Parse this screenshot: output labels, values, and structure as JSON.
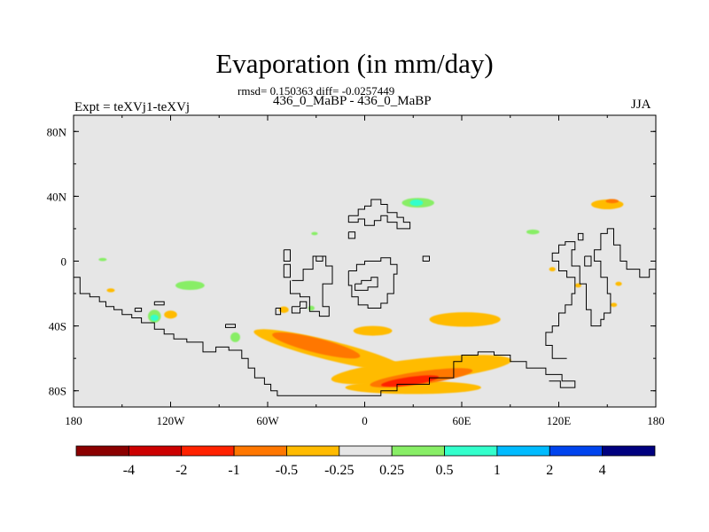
{
  "chart_data": {
    "type": "heatmap",
    "title": "Evaporation (in mm/day)",
    "stats_line": "rmsd= 0.150363 diff= -0.0257449",
    "subtitle": "436_0_MaBP - 436_0_MaBP",
    "experiment": "Expt = teXVj1-teXVj",
    "season": "JJA",
    "x_axis": {
      "range": [
        -180,
        180
      ],
      "ticks": [
        -180,
        -120,
        -60,
        0,
        60,
        120,
        180
      ],
      "tick_labels": [
        "180",
        "120W",
        "60W",
        "0",
        "60E",
        "120E",
        "180"
      ]
    },
    "y_axis": {
      "range": [
        -90,
        90
      ],
      "ticks": [
        80,
        40,
        0,
        -40,
        -80
      ],
      "tick_labels": [
        "80N",
        "40N",
        "0",
        "40S",
        "80S"
      ]
    },
    "colorbar": {
      "colors": [
        "#8b0000",
        "#cc0000",
        "#ff2200",
        "#ff7700",
        "#ffbb00",
        "#e6e6e6",
        "#88ee66",
        "#33ffcc",
        "#00bbff",
        "#0044ee",
        "#00007f"
      ],
      "boundary_labels": [
        "-4",
        "-2",
        "-1",
        "-0.5",
        "-0.25",
        "0.25",
        "0.5",
        "1",
        "2",
        "4"
      ]
    },
    "background_color": "#e6e6e6",
    "anomaly_regions": [
      {
        "lon": -22,
        "lat": -55,
        "rlon": 48,
        "rlat": 6,
        "rot": 14,
        "color": "#ffbb00"
      },
      {
        "lon": 35,
        "lat": -67,
        "rlon": 56,
        "rlat": 7,
        "rot": -6,
        "color": "#ffbb00"
      },
      {
        "lon": 30,
        "lat": -78,
        "rlon": 42,
        "rlat": 4,
        "rot": 0,
        "color": "#ffbb00"
      },
      {
        "lon": -30,
        "lat": -52,
        "rlon": 28,
        "rlat": 4.5,
        "rot": 14,
        "color": "#ff7700"
      },
      {
        "lon": 35,
        "lat": -72,
        "rlon": 32,
        "rlat": 4,
        "rot": -8,
        "color": "#ff7700"
      },
      {
        "lon": 28,
        "lat": -74,
        "rlon": 18,
        "rlat": 2.5,
        "rot": -8,
        "color": "#ff2200"
      },
      {
        "lon": 62,
        "lat": -36,
        "rlon": 22,
        "rlat": 4.5,
        "rot": 0,
        "color": "#ffbb00"
      },
      {
        "lon": 5,
        "lat": -43,
        "rlon": 12,
        "rlat": 3,
        "rot": 0,
        "color": "#ffbb00"
      },
      {
        "lon": -120,
        "lat": -33,
        "rlon": 4,
        "rlat": 2.5,
        "rot": 0,
        "color": "#ffbb00"
      },
      {
        "lon": -50,
        "lat": -30,
        "rlon": 3,
        "rlat": 2,
        "rot": 0,
        "color": "#ffbb00"
      },
      {
        "lon": -157,
        "lat": -18,
        "rlon": 2.5,
        "rlat": 1.2,
        "rot": 0,
        "color": "#ffbb00"
      },
      {
        "lon": -108,
        "lat": -15,
        "rlon": 9,
        "rlat": 2.8,
        "rot": 0,
        "color": "#88ee66"
      },
      {
        "lon": -130,
        "lat": -34,
        "rlon": 4,
        "rlat": 4,
        "rot": 0,
        "color": "#88ee66"
      },
      {
        "lon": -130,
        "lat": -35,
        "rlon": 2.5,
        "rlat": 2,
        "rot": 0,
        "color": "#33ffcc"
      },
      {
        "lon": -80,
        "lat": -47,
        "rlon": 3,
        "rlat": 3,
        "rot": 0,
        "color": "#88ee66"
      },
      {
        "lon": -162,
        "lat": 1,
        "rlon": 2.5,
        "rlat": 1,
        "rot": 0,
        "color": "#88ee66"
      },
      {
        "lon": -33,
        "lat": -29,
        "rlon": 2,
        "rlat": 1.5,
        "rot": 0,
        "color": "#88ee66"
      },
      {
        "lon": 33,
        "lat": 36,
        "rlon": 10,
        "rlat": 3,
        "rot": 0,
        "color": "#88ee66"
      },
      {
        "lon": 32,
        "lat": 36,
        "rlon": 4,
        "rlat": 2,
        "rot": 0,
        "color": "#33ffcc"
      },
      {
        "lon": 104,
        "lat": 18,
        "rlon": 4,
        "rlat": 1.5,
        "rot": 0,
        "color": "#88ee66"
      },
      {
        "lon": -31,
        "lat": 17,
        "rlon": 2,
        "rlat": 1,
        "rot": 0,
        "color": "#88ee66"
      },
      {
        "lon": 150,
        "lat": 35,
        "rlon": 10,
        "rlat": 3,
        "rot": 0,
        "color": "#ffbb00"
      },
      {
        "lon": 153,
        "lat": 37,
        "rlon": 4,
        "rlat": 1.3,
        "rot": 0,
        "color": "#ff7700"
      },
      {
        "lon": 116,
        "lat": -5,
        "rlon": 2,
        "rlat": 1.3,
        "rot": 0,
        "color": "#ffbb00"
      },
      {
        "lon": 132,
        "lat": -15,
        "rlon": 2,
        "rlat": 1.3,
        "rot": 0,
        "color": "#ffbb00"
      },
      {
        "lon": 157,
        "lat": -14,
        "rlon": 2,
        "rlat": 1.3,
        "rot": 0,
        "color": "#ffbb00"
      },
      {
        "lon": 154,
        "lat": -27,
        "rlon": 2,
        "rlat": 1.3,
        "rot": 0,
        "color": "#ffbb00"
      }
    ],
    "coastlines": [
      [
        [
          -180,
          -10
        ],
        [
          -176,
          -10
        ],
        [
          -176,
          -20
        ],
        [
          -170,
          -20
        ],
        [
          -170,
          -22
        ],
        [
          -164,
          -22
        ],
        [
          -164,
          -25
        ],
        [
          -160,
          -25
        ],
        [
          -160,
          -28
        ],
        [
          -155,
          -28
        ],
        [
          -155,
          -30
        ],
        [
          -150,
          -30
        ],
        [
          -150,
          -33
        ],
        [
          -144,
          -33
        ],
        [
          -144,
          -35
        ],
        [
          -138,
          -35
        ],
        [
          -138,
          -38
        ],
        [
          -130,
          -38
        ],
        [
          -130,
          -42
        ],
        [
          -124,
          -42
        ],
        [
          -124,
          -45
        ],
        [
          -118,
          -45
        ],
        [
          -118,
          -48
        ],
        [
          -110,
          -48
        ],
        [
          -110,
          -50
        ],
        [
          -100,
          -50
        ],
        [
          -100,
          -56
        ],
        [
          -92,
          -56
        ],
        [
          -92,
          -53
        ],
        [
          -84,
          -53
        ],
        [
          -84,
          -55
        ],
        [
          -76,
          -55
        ],
        [
          -76,
          -60
        ],
        [
          -72,
          -60
        ],
        [
          -72,
          -66
        ],
        [
          -68,
          -66
        ],
        [
          -68,
          -72
        ],
        [
          -62,
          -72
        ],
        [
          -62,
          -76
        ],
        [
          -58,
          -76
        ],
        [
          -58,
          -80
        ],
        [
          -54,
          -80
        ],
        [
          -54,
          -83
        ],
        [
          10,
          -83
        ],
        [
          10,
          -80
        ],
        [
          20,
          -80
        ],
        [
          20,
          -76
        ],
        [
          40,
          -76
        ],
        [
          40,
          -72
        ],
        [
          55,
          -72
        ],
        [
          55,
          -62
        ],
        [
          60,
          -62
        ],
        [
          60,
          -58
        ],
        [
          70,
          -58
        ],
        [
          70,
          -56
        ],
        [
          80,
          -56
        ],
        [
          80,
          -58
        ],
        [
          90,
          -58
        ],
        [
          90,
          -62
        ],
        [
          100,
          -62
        ],
        [
          100,
          -66
        ],
        [
          112,
          -66
        ],
        [
          112,
          -70
        ],
        [
          122,
          -70
        ],
        [
          122,
          -74
        ],
        [
          130,
          -74
        ],
        [
          130,
          -78
        ],
        [
          121,
          -78
        ],
        [
          121,
          -74
        ],
        [
          114,
          -74
        ]
      ],
      [
        [
          -45,
          -12
        ],
        [
          -38,
          -12
        ],
        [
          -38,
          -5
        ],
        [
          -32,
          -5
        ],
        [
          -32,
          3
        ],
        [
          -24,
          3
        ],
        [
          -24,
          -3
        ],
        [
          -20,
          -3
        ],
        [
          -20,
          -14
        ],
        [
          -26,
          -14
        ],
        [
          -26,
          -28
        ],
        [
          -22,
          -28
        ],
        [
          -22,
          -34
        ],
        [
          -28,
          -34
        ],
        [
          -28,
          -31
        ],
        [
          -34,
          -31
        ],
        [
          -34,
          -22
        ],
        [
          -40,
          -22
        ],
        [
          -40,
          -20
        ],
        [
          -46,
          -20
        ],
        [
          -46,
          -12
        ]
      ],
      [
        [
          -10,
          -6
        ],
        [
          -5,
          -6
        ],
        [
          -5,
          -2
        ],
        [
          0,
          -2
        ],
        [
          0,
          0
        ],
        [
          10,
          0
        ],
        [
          10,
          2
        ],
        [
          16,
          2
        ],
        [
          16,
          -2
        ],
        [
          20,
          -2
        ],
        [
          20,
          -8
        ],
        [
          18,
          -8
        ],
        [
          18,
          -20
        ],
        [
          14,
          -20
        ],
        [
          14,
          -26
        ],
        [
          10,
          -26
        ],
        [
          10,
          -29
        ],
        [
          2,
          -29
        ],
        [
          2,
          -27
        ],
        [
          -4,
          -27
        ],
        [
          -4,
          -22
        ],
        [
          -8,
          -22
        ],
        [
          -8,
          -15
        ],
        [
          -10,
          -15
        ],
        [
          -10,
          -6
        ]
      ],
      [
        [
          -6,
          -14
        ],
        [
          -2,
          -14
        ],
        [
          -2,
          -12
        ],
        [
          4,
          -12
        ],
        [
          4,
          -10
        ],
        [
          8,
          -10
        ],
        [
          8,
          -16
        ],
        [
          2,
          -16
        ],
        [
          2,
          -18
        ],
        [
          -6,
          -18
        ],
        [
          -6,
          -14
        ]
      ],
      [
        [
          -45,
          -28
        ],
        [
          -40,
          -28
        ],
        [
          -40,
          -25
        ],
        [
          -36,
          -25
        ],
        [
          -36,
          -29
        ],
        [
          -40,
          -29
        ],
        [
          -40,
          -32
        ],
        [
          -45,
          -32
        ],
        [
          -45,
          -28
        ]
      ],
      [
        [
          -55,
          -29
        ],
        [
          -52,
          -29
        ],
        [
          -52,
          -33
        ],
        [
          -55,
          -33
        ],
        [
          -55,
          -29
        ]
      ],
      [
        [
          -50,
          7
        ],
        [
          -46,
          7
        ],
        [
          -46,
          0
        ],
        [
          -50,
          0
        ],
        [
          -50,
          7
        ]
      ],
      [
        [
          -50,
          -2
        ],
        [
          -46,
          -2
        ],
        [
          -46,
          -10
        ],
        [
          -50,
          -10
        ],
        [
          -50,
          -2
        ]
      ],
      [
        [
          -30,
          3
        ],
        [
          -26,
          3
        ],
        [
          -26,
          0
        ],
        [
          -30,
          0
        ],
        [
          -30,
          3
        ]
      ],
      [
        [
          40,
          0
        ],
        [
          36,
          0
        ],
        [
          36,
          3
        ],
        [
          40,
          3
        ],
        [
          40,
          0
        ]
      ],
      [
        [
          -10,
          28
        ],
        [
          -4,
          28
        ],
        [
          -4,
          32
        ],
        [
          0,
          32
        ],
        [
          0,
          34
        ],
        [
          4,
          34
        ],
        [
          4,
          38
        ],
        [
          10,
          38
        ],
        [
          10,
          35
        ],
        [
          14,
          35
        ],
        [
          14,
          30
        ],
        [
          20,
          30
        ],
        [
          20,
          27
        ],
        [
          24,
          27
        ],
        [
          24,
          24
        ],
        [
          28,
          24
        ],
        [
          28,
          20
        ],
        [
          20,
          20
        ],
        [
          20,
          24
        ],
        [
          14,
          24
        ],
        [
          14,
          28
        ],
        [
          10,
          28
        ],
        [
          10,
          25
        ],
        [
          6,
          25
        ],
        [
          6,
          22
        ],
        [
          0,
          22
        ],
        [
          0,
          26
        ],
        [
          -4,
          26
        ],
        [
          -4,
          24
        ],
        [
          -10,
          24
        ],
        [
          -10,
          28
        ]
      ],
      [
        [
          -10,
          18
        ],
        [
          -6,
          18
        ],
        [
          -6,
          14
        ],
        [
          -10,
          14
        ],
        [
          -10,
          18
        ]
      ],
      [
        [
          125,
          -60
        ],
        [
          116,
          -60
        ],
        [
          116,
          -52
        ],
        [
          112,
          -52
        ],
        [
          112,
          -44
        ],
        [
          116,
          -44
        ],
        [
          116,
          -40
        ],
        [
          120,
          -40
        ],
        [
          120,
          -32
        ],
        [
          124,
          -32
        ],
        [
          124,
          -27
        ],
        [
          128,
          -27
        ],
        [
          128,
          -20
        ],
        [
          130,
          -20
        ],
        [
          130,
          -10
        ],
        [
          125,
          -10
        ],
        [
          125,
          -6
        ],
        [
          120,
          -6
        ],
        [
          120,
          0
        ],
        [
          116,
          0
        ],
        [
          116,
          5
        ],
        [
          120,
          5
        ],
        [
          120,
          10
        ],
        [
          124,
          10
        ],
        [
          124,
          12
        ],
        [
          130,
          12
        ],
        [
          130,
          7
        ],
        [
          128,
          7
        ],
        [
          128,
          -3
        ],
        [
          133,
          -3
        ],
        [
          133,
          -14
        ],
        [
          137,
          -14
        ],
        [
          137,
          -30
        ],
        [
          140,
          -30
        ],
        [
          140,
          -40
        ],
        [
          146,
          -40
        ],
        [
          146,
          -36
        ],
        [
          148,
          -36
        ],
        [
          148,
          -32
        ],
        [
          152,
          -32
        ],
        [
          152,
          -20
        ],
        [
          150,
          -20
        ],
        [
          150,
          -10
        ],
        [
          146,
          -10
        ],
        [
          146,
          0
        ],
        [
          142,
          0
        ],
        [
          142,
          7
        ],
        [
          146,
          7
        ],
        [
          146,
          17
        ],
        [
          150,
          17
        ],
        [
          150,
          20
        ],
        [
          154,
          20
        ],
        [
          154,
          10
        ],
        [
          158,
          10
        ],
        [
          158,
          0
        ],
        [
          162,
          0
        ],
        [
          162,
          -5
        ],
        [
          170,
          -5
        ],
        [
          170,
          -10
        ],
        [
          176,
          -10
        ],
        [
          176,
          -5
        ],
        [
          180,
          -5
        ]
      ],
      [
        [
          136,
          3
        ],
        [
          140,
          3
        ],
        [
          140,
          -3
        ],
        [
          136,
          -3
        ],
        [
          136,
          3
        ]
      ],
      [
        [
          132,
          13
        ],
        [
          135,
          13
        ],
        [
          135,
          17
        ],
        [
          132,
          17
        ],
        [
          132,
          13
        ]
      ],
      [
        [
          -130,
          -25
        ],
        [
          -124,
          -25
        ],
        [
          -124,
          -27
        ],
        [
          -130,
          -27
        ],
        [
          -130,
          -25
        ]
      ],
      [
        [
          -142,
          -29
        ],
        [
          -138,
          -29
        ],
        [
          -138,
          -31
        ],
        [
          -142,
          -31
        ],
        [
          -142,
          -29
        ]
      ],
      [
        [
          -86,
          -39
        ],
        [
          -80,
          -39
        ],
        [
          -80,
          -41
        ],
        [
          -86,
          -41
        ],
        [
          -86,
          -39
        ]
      ]
    ]
  }
}
